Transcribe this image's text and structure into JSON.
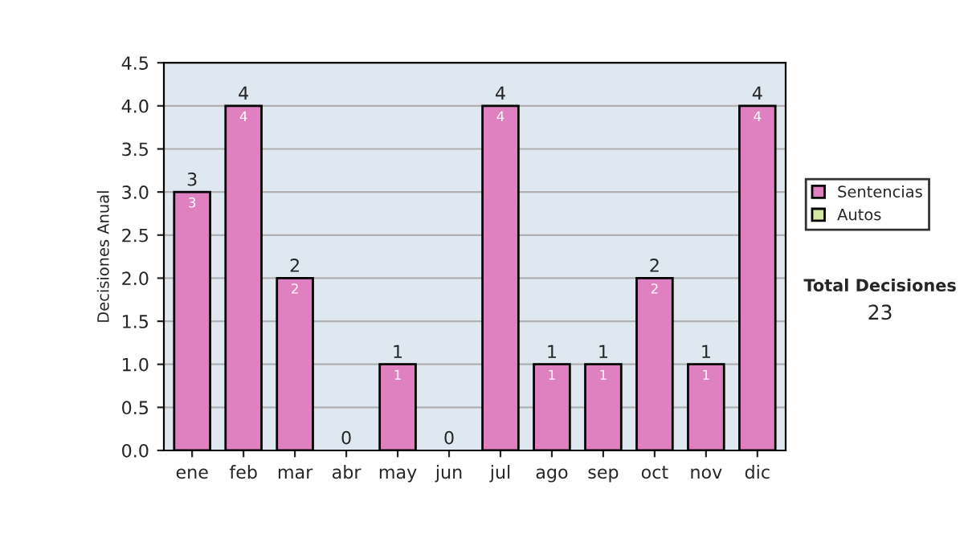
{
  "chart_data": {
    "type": "bar",
    "stacked": true,
    "ylabel": "Decisiones Anual",
    "categories": [
      "ene",
      "feb",
      "mar",
      "abr",
      "may",
      "jun",
      "jul",
      "ago",
      "sep",
      "oct",
      "nov",
      "dic"
    ],
    "series": [
      {
        "name": "Sentencias",
        "color": "#df80c0",
        "values": [
          3,
          4,
          2,
          0,
          1,
          0,
          4,
          1,
          1,
          2,
          1,
          4
        ],
        "value_labels": [
          "3",
          "4",
          "2",
          null,
          "1",
          null,
          "4",
          "1",
          "1",
          "2",
          "1",
          "4"
        ]
      },
      {
        "name": "Autos",
        "color": "#d4e8a0",
        "values": [
          0,
          0,
          0,
          0,
          0,
          0,
          0,
          0,
          0,
          0,
          0,
          0
        ]
      }
    ],
    "totals": [
      "3",
      "4",
      "2",
      "0",
      "1",
      "0",
      "4",
      "1",
      "1",
      "2",
      "1",
      "4"
    ],
    "ylim": [
      0,
      4.5
    ],
    "yticks": [
      {
        "value": 0,
        "label": "0.0"
      },
      {
        "value": 0.5,
        "label": "0.5"
      },
      {
        "value": 1,
        "label": "1.0"
      },
      {
        "value": 1.5,
        "label": "1.5"
      },
      {
        "value": 2,
        "label": "2.0"
      },
      {
        "value": 2.5,
        "label": "2.5"
      },
      {
        "value": 3,
        "label": "3.0"
      },
      {
        "value": 3.5,
        "label": "3.5"
      },
      {
        "value": 4,
        "label": "4.0"
      },
      {
        "value": 4.5,
        "label": "4.5"
      }
    ],
    "grid": "y",
    "legend": "right",
    "annotations": [
      "Total Decisiones",
      "23"
    ]
  }
}
